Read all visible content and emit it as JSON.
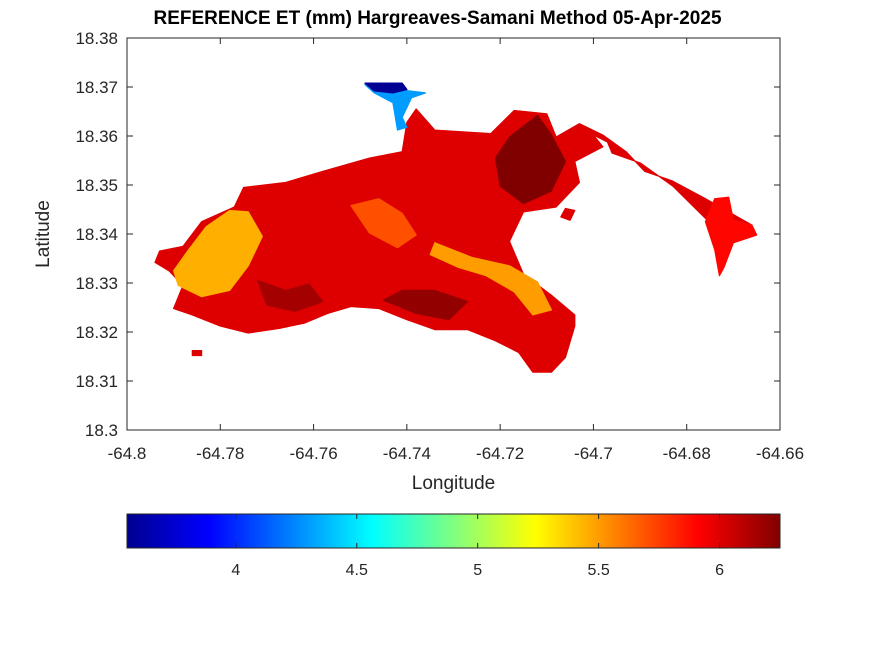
{
  "chart_data": {
    "type": "heatmap",
    "title": "REFERENCE ET (mm) Hargreaves-Samani Method  05-Apr-2025",
    "xlabel": "Longitude",
    "ylabel": "Latitude",
    "xlim": [
      -64.8,
      -64.66
    ],
    "ylim": [
      18.3,
      18.38
    ],
    "x_ticks": [
      "-64.8",
      "-64.78",
      "-64.76",
      "-64.74",
      "-64.72",
      "-64.7",
      "-64.68",
      "-64.66"
    ],
    "x_tick_values": [
      -64.8,
      -64.78,
      -64.76,
      -64.74,
      -64.72,
      -64.7,
      -64.68,
      -64.66
    ],
    "y_ticks": [
      "18.3",
      "18.31",
      "18.32",
      "18.33",
      "18.34",
      "18.35",
      "18.36",
      "18.37",
      "18.38"
    ],
    "y_tick_values": [
      18.3,
      18.31,
      18.32,
      18.33,
      18.34,
      18.35,
      18.36,
      18.37,
      18.38
    ],
    "colorbar": {
      "colormap": "jet",
      "range": [
        3.55,
        6.25
      ],
      "ticks": [
        "4",
        "4.5",
        "5",
        "5.5",
        "6"
      ],
      "tick_values": [
        4,
        4.5,
        5,
        5.5,
        6
      ]
    },
    "grid": false,
    "regions": [
      {
        "id": "main-island",
        "value": 6.0,
        "outline": [
          [
            -64.793,
            18.3365
          ],
          [
            -64.788,
            18.3375
          ],
          [
            -64.784,
            18.3425
          ],
          [
            -64.777,
            18.3455
          ],
          [
            -64.775,
            18.3495
          ],
          [
            -64.766,
            18.3505
          ],
          [
            -64.758,
            18.3528
          ],
          [
            -64.748,
            18.3555
          ],
          [
            -64.741,
            18.3568
          ],
          [
            -64.74,
            18.3628
          ],
          [
            -64.738,
            18.3655
          ],
          [
            -64.734,
            18.3612
          ],
          [
            -64.722,
            18.3605
          ],
          [
            -64.717,
            18.3652
          ],
          [
            -64.71,
            18.3645
          ],
          [
            -64.708,
            18.3598
          ],
          [
            -64.7,
            18.3602
          ],
          [
            -64.698,
            18.3578
          ],
          [
            -64.704,
            18.3548
          ],
          [
            -64.703,
            18.3505
          ],
          [
            -64.708,
            18.3455
          ],
          [
            -64.715,
            18.3445
          ],
          [
            -64.718,
            18.3385
          ],
          [
            -64.715,
            18.3318
          ],
          [
            -64.709,
            18.3275
          ],
          [
            -64.704,
            18.3235
          ],
          [
            -64.704,
            18.3212
          ],
          [
            -64.706,
            18.3148
          ],
          [
            -64.709,
            18.3118
          ],
          [
            -64.713,
            18.3118
          ],
          [
            -64.716,
            18.3158
          ],
          [
            -64.721,
            18.3182
          ],
          [
            -64.727,
            18.3205
          ],
          [
            -64.734,
            18.3205
          ],
          [
            -64.74,
            18.3225
          ],
          [
            -64.746,
            18.3248
          ],
          [
            -64.752,
            18.3252
          ],
          [
            -64.757,
            18.3238
          ],
          [
            -64.762,
            18.3218
          ],
          [
            -64.767,
            18.3208
          ],
          [
            -64.774,
            18.3198
          ],
          [
            -64.78,
            18.3212
          ],
          [
            -64.786,
            18.3235
          ],
          [
            -64.79,
            18.3248
          ],
          [
            -64.788,
            18.3295
          ],
          [
            -64.791,
            18.3325
          ],
          [
            -64.794,
            18.3342
          ]
        ]
      },
      {
        "id": "east-strip",
        "value": 6.0,
        "outline": [
          [
            -64.708,
            18.3598
          ],
          [
            -64.7,
            18.3602
          ],
          [
            -64.697,
            18.3588
          ],
          [
            -64.696,
            18.3565
          ],
          [
            -64.69,
            18.3545
          ],
          [
            -64.683,
            18.3498
          ],
          [
            -64.676,
            18.3432
          ],
          [
            -64.671,
            18.3405
          ],
          [
            -64.666,
            18.3398
          ],
          [
            -64.666,
            18.3418
          ],
          [
            -64.671,
            18.3445
          ],
          [
            -64.676,
            18.3472
          ],
          [
            -64.683,
            18.3508
          ],
          [
            -64.689,
            18.3528
          ],
          [
            -64.693,
            18.3568
          ],
          [
            -64.698,
            18.3602
          ],
          [
            -64.703,
            18.3625
          ]
        ]
      },
      {
        "id": "east-cape",
        "value": 5.9,
        "outline": [
          [
            -64.674,
            18.3472
          ],
          [
            -64.671,
            18.3475
          ],
          [
            -64.67,
            18.3428
          ],
          [
            -64.666,
            18.3418
          ],
          [
            -64.665,
            18.3398
          ],
          [
            -64.67,
            18.3382
          ],
          [
            -64.672,
            18.3332
          ],
          [
            -64.673,
            18.3315
          ],
          [
            -64.674,
            18.3368
          ],
          [
            -64.676,
            18.3425
          ]
        ]
      },
      {
        "id": "south-ridge",
        "value": 5.5,
        "outline": [
          [
            -64.734,
            18.3382
          ],
          [
            -64.726,
            18.3352
          ],
          [
            -64.718,
            18.3335
          ],
          [
            -64.712,
            18.3302
          ],
          [
            -64.709,
            18.3245
          ],
          [
            -64.713,
            18.3235
          ],
          [
            -64.717,
            18.3282
          ],
          [
            -64.723,
            18.3315
          ],
          [
            -64.729,
            18.3332
          ],
          [
            -64.735,
            18.3358
          ]
        ]
      },
      {
        "id": "west-highland",
        "value": 5.45,
        "outline": [
          [
            -64.79,
            18.3325
          ],
          [
            -64.787,
            18.3365
          ],
          [
            -64.783,
            18.3415
          ],
          [
            -64.778,
            18.3448
          ],
          [
            -64.774,
            18.3445
          ],
          [
            -64.771,
            18.3395
          ],
          [
            -64.774,
            18.3335
          ],
          [
            -64.778,
            18.3285
          ],
          [
            -64.784,
            18.3272
          ],
          [
            -64.789,
            18.3295
          ]
        ]
      },
      {
        "id": "mid-ridge",
        "value": 5.7,
        "outline": [
          [
            -64.752,
            18.3458
          ],
          [
            -64.746,
            18.3472
          ],
          [
            -64.741,
            18.3442
          ],
          [
            -64.738,
            18.3398
          ],
          [
            -64.742,
            18.3372
          ],
          [
            -64.748,
            18.3402
          ]
        ]
      },
      {
        "id": "northeast-dark",
        "value": 6.25,
        "outline": [
          [
            -64.718,
            18.3598
          ],
          [
            -64.712,
            18.3642
          ],
          [
            -64.709,
            18.3602
          ],
          [
            -64.706,
            18.3548
          ],
          [
            -64.709,
            18.3488
          ],
          [
            -64.715,
            18.3462
          ],
          [
            -64.72,
            18.3498
          ],
          [
            -64.721,
            18.3555
          ]
        ]
      },
      {
        "id": "south-dark",
        "value": 6.2,
        "outline": [
          [
            -64.745,
            18.3265
          ],
          [
            -64.738,
            18.3238
          ],
          [
            -64.731,
            18.3225
          ],
          [
            -64.727,
            18.3262
          ],
          [
            -64.734,
            18.3285
          ],
          [
            -64.741,
            18.3285
          ]
        ]
      },
      {
        "id": "west-dark",
        "value": 6.15,
        "outline": [
          [
            -64.772,
            18.3305
          ],
          [
            -64.766,
            18.3285
          ],
          [
            -64.761,
            18.3298
          ],
          [
            -64.758,
            18.3262
          ],
          [
            -64.764,
            18.3242
          ],
          [
            -64.77,
            18.3255
          ]
        ]
      },
      {
        "id": "north-peninsula",
        "value": 4.3,
        "outline": [
          [
            -64.749,
            18.3705
          ],
          [
            -64.745,
            18.3705
          ],
          [
            -64.742,
            18.3695
          ],
          [
            -64.736,
            18.3688
          ],
          [
            -64.739,
            18.3678
          ],
          [
            -64.741,
            18.3638
          ],
          [
            -64.74,
            18.3618
          ],
          [
            -64.742,
            18.3612
          ],
          [
            -64.743,
            18.3668
          ],
          [
            -64.747,
            18.3688
          ]
        ]
      },
      {
        "id": "north-tip",
        "value": 3.6,
        "outline": [
          [
            -64.749,
            18.3708
          ],
          [
            -64.741,
            18.3708
          ],
          [
            -64.74,
            18.3695
          ],
          [
            -64.743,
            18.3688
          ],
          [
            -64.747,
            18.3692
          ]
        ]
      },
      {
        "id": "islet-southwest",
        "value": 6.0,
        "outline": [
          [
            -64.786,
            18.3162
          ],
          [
            -64.784,
            18.3162
          ],
          [
            -64.784,
            18.3152
          ],
          [
            -64.786,
            18.3152
          ]
        ]
      },
      {
        "id": "islet-east",
        "value": 6.0,
        "outline": [
          [
            -64.706,
            18.3452
          ],
          [
            -64.704,
            18.3448
          ],
          [
            -64.705,
            18.3428
          ],
          [
            -64.707,
            18.3435
          ]
        ]
      }
    ]
  }
}
